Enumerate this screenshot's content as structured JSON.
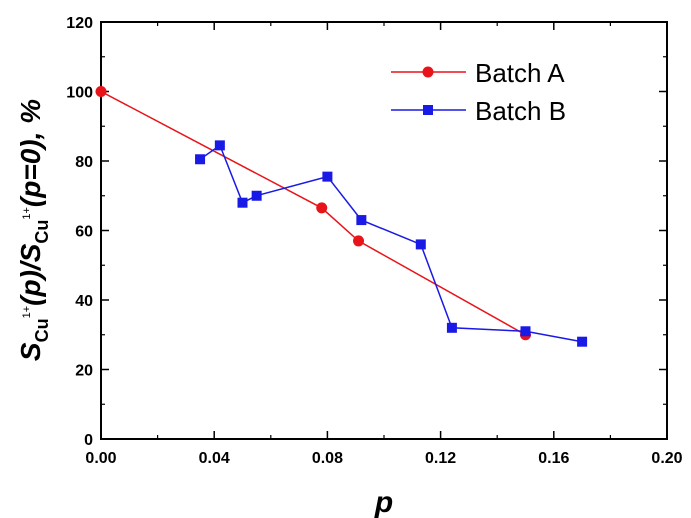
{
  "chart_data": {
    "type": "line",
    "xlabel": "p",
    "ylabel_parts": {
      "s1": "S",
      "sub1": "Cu",
      "sup1": "1+",
      "mid": "(p)/S",
      "sub2": "Cu",
      "sup2": "1+",
      "end": "(p=0), %"
    },
    "xlim": [
      0,
      0.2
    ],
    "ylim": [
      0,
      120
    ],
    "xticks": [
      "0.00",
      "0.04",
      "0.08",
      "0.12",
      "0.16",
      "0.20"
    ],
    "yticks": [
      "0",
      "20",
      "40",
      "60",
      "80",
      "100",
      "120"
    ],
    "legend_position": "top-right",
    "series": [
      {
        "name": "Batch A",
        "color": "#e8141a",
        "marker": "circle",
        "x": [
          0.0,
          0.078,
          0.091,
          0.15
        ],
        "y": [
          100,
          66.5,
          57,
          30
        ]
      },
      {
        "name": "Batch B",
        "color": "#1a1ae6",
        "marker": "square",
        "x": [
          0.035,
          0.042,
          0.05,
          0.055,
          0.08,
          0.092,
          0.113,
          0.124,
          0.15,
          0.17
        ],
        "y": [
          80.5,
          84.5,
          68,
          70,
          75.5,
          63,
          56,
          32,
          31,
          28
        ]
      }
    ]
  }
}
